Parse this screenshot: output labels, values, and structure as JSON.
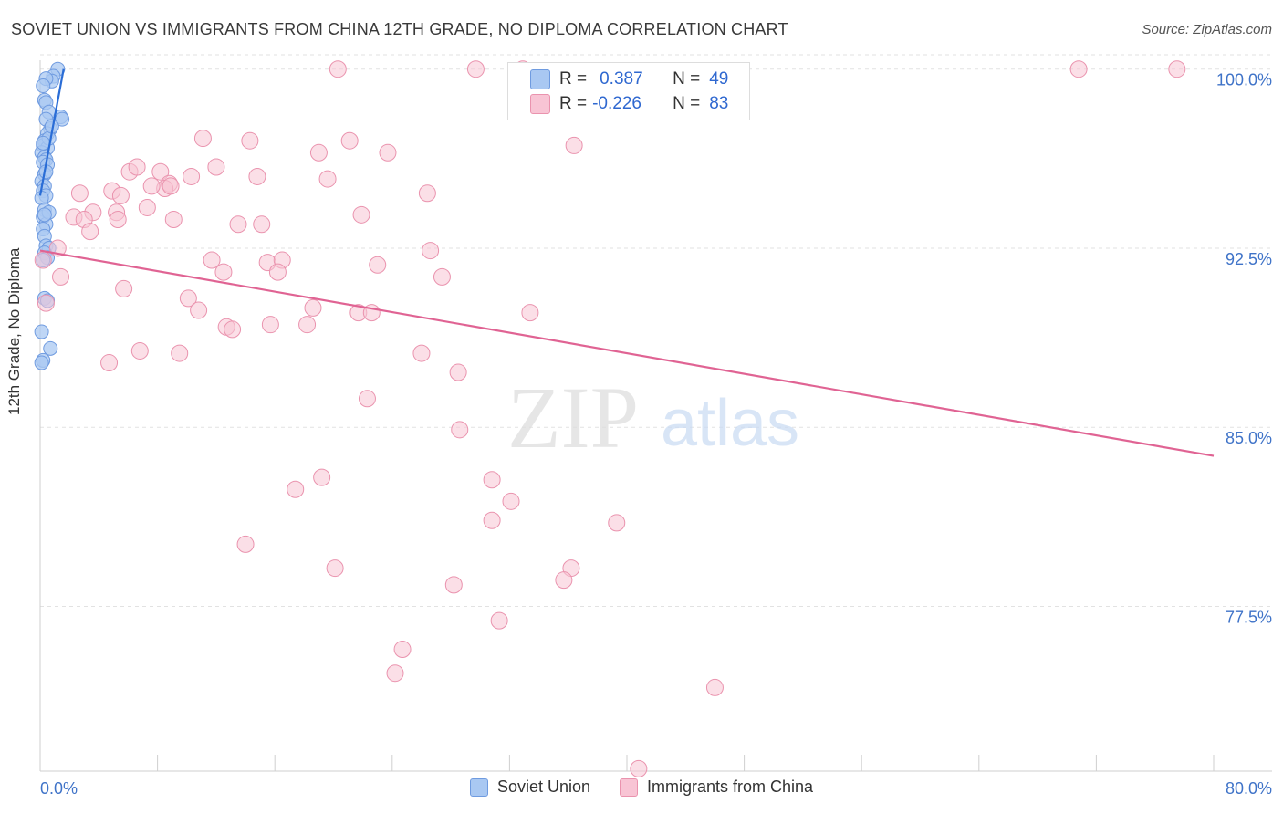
{
  "title": "SOVIET UNION VS IMMIGRANTS FROM CHINA 12TH GRADE, NO DIPLOMA CORRELATION CHART",
  "source": "Source: ZipAtlas.com",
  "watermark": {
    "zip": "ZIP",
    "atlas": "atlas"
  },
  "stats": [
    {
      "r_label": "R =",
      "r": "0.387",
      "n_label": "N =",
      "n": "49",
      "color": "#a9c8f2",
      "border": "#6f9be0"
    },
    {
      "r_label": "R =",
      "r": "-0.226",
      "n_label": "N =",
      "n": "83",
      "color": "#f8c4d4",
      "border": "#ea93ae"
    }
  ],
  "chart_data": {
    "type": "scatter",
    "title": "SOVIET UNION VS IMMIGRANTS FROM CHINA 12TH GRADE, NO DIPLOMA CORRELATION CHART",
    "xlabel": "",
    "ylabel": "12th Grade, No Diploma",
    "xlim": [
      0,
      80
    ],
    "ylim": [
      70.6,
      100.6
    ],
    "x_tick_labels": [
      "0.0%",
      "80.0%"
    ],
    "y_ticks": [
      77.5,
      85.0,
      92.5,
      100.0
    ],
    "y_tick_labels": [
      "77.5%",
      "85.0%",
      "92.5%",
      "100.0%"
    ],
    "legend_position": "top-center",
    "series": [
      {
        "name": "Soviet Union",
        "color": "#a9c8f2",
        "stroke": "#6f9be0",
        "trend_color": "#2a6dd6",
        "trend": [
          [
            0.0,
            94.7
          ],
          [
            1.6,
            100.0
          ]
        ],
        "points": [
          [
            1.2,
            100.0
          ],
          [
            0.9,
            99.7
          ],
          [
            0.8,
            99.5
          ],
          [
            0.4,
            99.6
          ],
          [
            0.2,
            99.3
          ],
          [
            0.3,
            98.7
          ],
          [
            0.4,
            98.6
          ],
          [
            0.6,
            98.2
          ],
          [
            1.4,
            98.0
          ],
          [
            1.5,
            97.9
          ],
          [
            0.4,
            97.9
          ],
          [
            0.7,
            97.5
          ],
          [
            0.5,
            97.3
          ],
          [
            0.3,
            97.0
          ],
          [
            0.2,
            96.8
          ],
          [
            0.5,
            96.7
          ],
          [
            0.1,
            96.5
          ],
          [
            0.3,
            96.3
          ],
          [
            0.4,
            96.2
          ],
          [
            0.2,
            96.1
          ],
          [
            0.5,
            96.0
          ],
          [
            0.3,
            95.6
          ],
          [
            0.1,
            95.3
          ],
          [
            0.3,
            95.1
          ],
          [
            0.2,
            94.9
          ],
          [
            0.4,
            94.7
          ],
          [
            0.1,
            94.6
          ],
          [
            0.3,
            94.1
          ],
          [
            0.2,
            93.8
          ],
          [
            0.4,
            93.5
          ],
          [
            0.2,
            93.3
          ],
          [
            0.3,
            93.0
          ],
          [
            0.4,
            92.6
          ],
          [
            0.6,
            92.5
          ],
          [
            0.3,
            92.3
          ],
          [
            0.5,
            92.1
          ],
          [
            0.3,
            90.4
          ],
          [
            0.5,
            90.3
          ],
          [
            0.1,
            89.0
          ],
          [
            0.7,
            88.3
          ],
          [
            0.2,
            87.8
          ],
          [
            0.1,
            87.7
          ],
          [
            0.6,
            97.1
          ],
          [
            0.8,
            97.6
          ],
          [
            0.2,
            96.9
          ],
          [
            0.4,
            95.7
          ],
          [
            0.6,
            94.0
          ],
          [
            0.3,
            93.9
          ],
          [
            0.2,
            92.0
          ]
        ]
      },
      {
        "name": "Immigrants from China",
        "color": "#f8c4d4",
        "stroke": "#ea93ae",
        "trend_color": "#e06393",
        "trend": [
          [
            0.0,
            92.4
          ],
          [
            80.0,
            83.8
          ]
        ],
        "points": [
          [
            20.3,
            100.0
          ],
          [
            29.7,
            100.0
          ],
          [
            32.9,
            100.0
          ],
          [
            70.8,
            100.0
          ],
          [
            77.5,
            100.0
          ],
          [
            11.1,
            97.1
          ],
          [
            14.3,
            97.0
          ],
          [
            21.1,
            97.0
          ],
          [
            19.0,
            96.5
          ],
          [
            23.7,
            96.5
          ],
          [
            36.4,
            96.8
          ],
          [
            12.0,
            95.9
          ],
          [
            6.1,
            95.7
          ],
          [
            8.2,
            95.7
          ],
          [
            14.8,
            95.5
          ],
          [
            10.3,
            95.5
          ],
          [
            19.6,
            95.4
          ],
          [
            8.8,
            95.2
          ],
          [
            8.5,
            95.0
          ],
          [
            7.6,
            95.1
          ],
          [
            4.9,
            94.9
          ],
          [
            2.7,
            94.8
          ],
          [
            26.4,
            94.8
          ],
          [
            5.5,
            94.7
          ],
          [
            7.3,
            94.2
          ],
          [
            3.6,
            94.0
          ],
          [
            5.2,
            94.0
          ],
          [
            2.3,
            93.8
          ],
          [
            3.0,
            93.7
          ],
          [
            5.3,
            93.7
          ],
          [
            9.1,
            93.7
          ],
          [
            13.5,
            93.5
          ],
          [
            15.1,
            93.5
          ],
          [
            21.9,
            93.9
          ],
          [
            3.4,
            93.2
          ],
          [
            1.2,
            92.5
          ],
          [
            26.6,
            92.4
          ],
          [
            11.7,
            92.0
          ],
          [
            15.5,
            91.9
          ],
          [
            16.5,
            92.0
          ],
          [
            23.0,
            91.8
          ],
          [
            12.5,
            91.5
          ],
          [
            16.2,
            91.5
          ],
          [
            1.4,
            91.3
          ],
          [
            27.4,
            91.3
          ],
          [
            5.7,
            90.8
          ],
          [
            10.1,
            90.4
          ],
          [
            18.6,
            90.0
          ],
          [
            10.8,
            89.9
          ],
          [
            21.7,
            89.8
          ],
          [
            22.6,
            89.8
          ],
          [
            33.4,
            89.8
          ],
          [
            12.7,
            89.2
          ],
          [
            13.1,
            89.1
          ],
          [
            15.7,
            89.3
          ],
          [
            18.2,
            89.3
          ],
          [
            6.8,
            88.2
          ],
          [
            9.5,
            88.1
          ],
          [
            26.0,
            88.1
          ],
          [
            4.7,
            87.7
          ],
          [
            28.5,
            87.3
          ],
          [
            22.3,
            86.2
          ],
          [
            28.6,
            84.9
          ],
          [
            19.2,
            82.9
          ],
          [
            17.4,
            82.4
          ],
          [
            30.8,
            82.8
          ],
          [
            32.1,
            81.9
          ],
          [
            30.8,
            81.1
          ],
          [
            39.3,
            81.0
          ],
          [
            14.0,
            80.1
          ],
          [
            20.1,
            79.1
          ],
          [
            36.2,
            79.1
          ],
          [
            35.7,
            78.6
          ],
          [
            28.2,
            78.4
          ],
          [
            31.3,
            76.9
          ],
          [
            24.7,
            75.7
          ],
          [
            24.2,
            74.7
          ],
          [
            46.0,
            74.1
          ],
          [
            40.8,
            70.7
          ],
          [
            0.2,
            92.0
          ],
          [
            0.4,
            90.2
          ],
          [
            6.6,
            95.9
          ],
          [
            8.9,
            95.1
          ]
        ]
      }
    ]
  },
  "legend": [
    {
      "label": "Soviet Union",
      "color": "#a9c8f2",
      "border": "#6f9be0"
    },
    {
      "label": "Immigrants from China",
      "color": "#f8c4d4",
      "border": "#ea93ae"
    }
  ]
}
